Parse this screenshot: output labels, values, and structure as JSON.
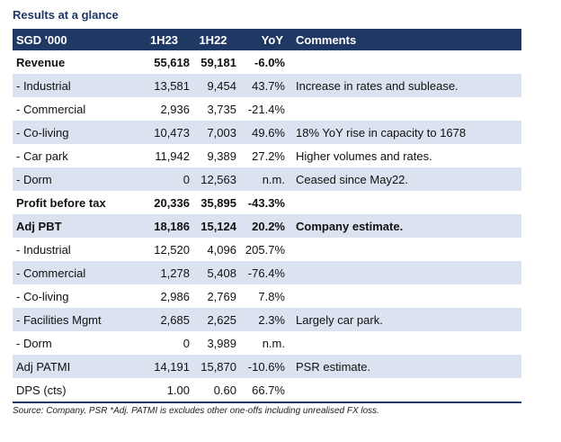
{
  "title": "Results at a glance",
  "header": [
    "SGD '000",
    "1H23",
    "1H22",
    "YoY",
    "Comments"
  ],
  "rows": [
    {
      "label": "Revenue",
      "h23": "55,618",
      "h22": "59,181",
      "yoy": "-6.0%",
      "comment": "",
      "bold": true,
      "shaded": false
    },
    {
      "label": "- Industrial",
      "h23": "13,581",
      "h22": "9,454",
      "yoy": "43.7%",
      "comment": "Increase in rates and sublease.",
      "bold": false,
      "shaded": true
    },
    {
      "label": "- Commercial",
      "h23": "2,936",
      "h22": "3,735",
      "yoy": "-21.4%",
      "comment": "",
      "bold": false,
      "shaded": false
    },
    {
      "label": "- Co-living",
      "h23": "10,473",
      "h22": "7,003",
      "yoy": "49.6%",
      "comment": "18% YoY rise in capacity to 1678",
      "bold": false,
      "shaded": true
    },
    {
      "label": " - Car park",
      "h23": "11,942",
      "h22": "9,389",
      "yoy": "27.2%",
      "comment": "Higher volumes and rates.",
      "bold": false,
      "shaded": false
    },
    {
      "label": " - Dorm",
      "h23": "0",
      "h22": "12,563",
      "yoy": "n.m.",
      "comment": "Ceased since May22.",
      "bold": false,
      "shaded": true
    },
    {
      "label": "Profit before tax",
      "h23": "20,336",
      "h22": "35,895",
      "yoy": "-43.3%",
      "comment": "",
      "bold": true,
      "shaded": false
    },
    {
      "label": "Adj PBT",
      "h23": "18,186",
      "h22": "15,124",
      "yoy": "20.2%",
      "comment": "Company estimate.",
      "bold": true,
      "shaded": true
    },
    {
      "label": "- Industrial",
      "h23": "12,520",
      "h22": "4,096",
      "yoy": "205.7%",
      "comment": "",
      "bold": false,
      "shaded": false
    },
    {
      "label": "- Commercial",
      "h23": "1,278",
      "h22": "5,408",
      "yoy": "-76.4%",
      "comment": "",
      "bold": false,
      "shaded": true
    },
    {
      "label": "- Co-living",
      "h23": "2,986",
      "h22": "2,769",
      "yoy": "7.8%",
      "comment": "",
      "bold": false,
      "shaded": false
    },
    {
      "label": "- Facilities Mgmt",
      "h23": "2,685",
      "h22": "2,625",
      "yoy": "2.3%",
      "comment": "Largely car park.",
      "bold": false,
      "shaded": true
    },
    {
      "label": " - Dorm",
      "h23": "0",
      "h22": "3,989",
      "yoy": "n.m.",
      "comment": "",
      "bold": false,
      "shaded": false
    },
    {
      "label": "Adj PATMI",
      "h23": "14,191",
      "h22": "15,870",
      "yoy": "-10.6%",
      "comment": "PSR estimate.",
      "bold": false,
      "shaded": true
    },
    {
      "label": "DPS (cts)",
      "h23": "1.00",
      "h22": "0.60",
      "yoy": "66.7%",
      "comment": "",
      "bold": false,
      "shaded": false
    }
  ],
  "source": "Source: Company, PSR *Adj. PATMI is excludes other one-offs including unrealised FX loss.",
  "colors": {
    "header_bg": "#1f3864",
    "shade": "#dbe3f0",
    "title": "#1f3864"
  }
}
